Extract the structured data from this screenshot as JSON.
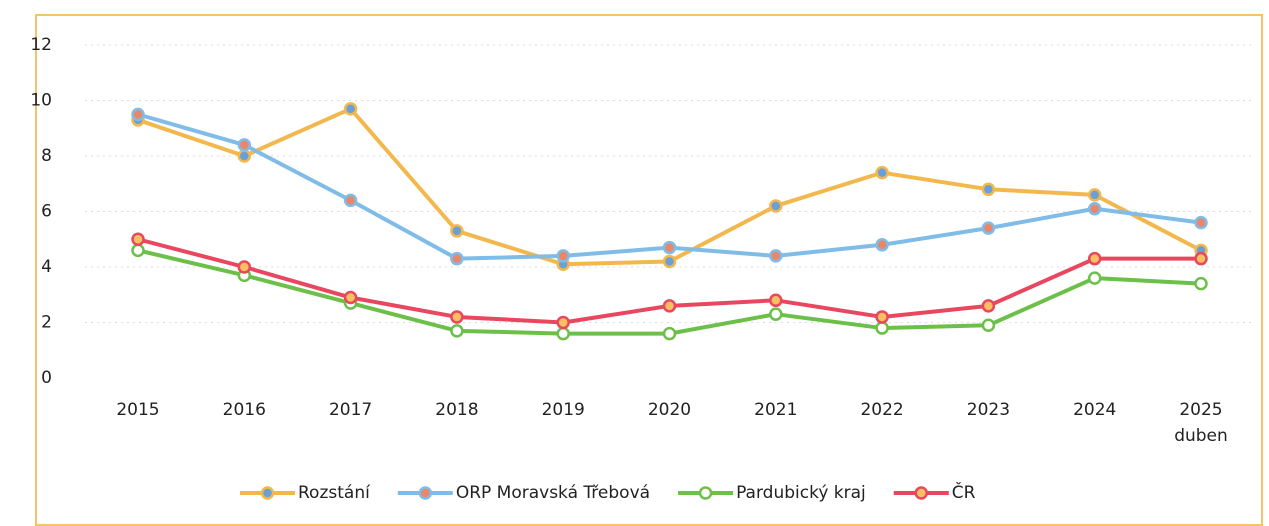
{
  "chart_data": {
    "type": "line",
    "categories": [
      "2015",
      "2016",
      "2017",
      "2018",
      "2019",
      "2020",
      "2021",
      "2022",
      "2023",
      "2024",
      "2025 duben"
    ],
    "series": [
      {
        "name": "Rozstání",
        "color": "#f2b84e",
        "marker_fill": "#6a9fd8",
        "marker_edge": "#f2b84e",
        "values": [
          9.3,
          8.0,
          9.7,
          5.3,
          4.1,
          4.2,
          6.2,
          7.4,
          6.8,
          6.6,
          4.6
        ]
      },
      {
        "name": "ORP Moravská Třebová",
        "color": "#80bce8",
        "marker_fill": "#e8876a",
        "marker_edge": "#80bce8",
        "values": [
          9.5,
          8.4,
          6.4,
          4.3,
          4.4,
          4.7,
          4.4,
          4.8,
          5.4,
          6.1,
          5.6
        ]
      },
      {
        "name": "Pardubický kraj",
        "color": "#6cc04a",
        "marker_fill": "#ffffff",
        "marker_edge": "#6cc04a",
        "values": [
          4.6,
          3.7,
          2.7,
          1.7,
          1.6,
          1.6,
          2.3,
          1.8,
          1.9,
          3.6,
          3.4
        ]
      },
      {
        "name": "ČR",
        "color": "#e8475f",
        "marker_fill": "#f8c060",
        "marker_edge": "#e8475f",
        "values": [
          5.0,
          4.0,
          2.9,
          2.2,
          2.0,
          2.6,
          2.8,
          2.2,
          2.6,
          4.3,
          4.3
        ]
      }
    ],
    "ylim": [
      0,
      12
    ],
    "yticks": [
      0,
      2,
      4,
      6,
      8,
      10,
      12
    ],
    "grid": true,
    "legend": "bottom"
  }
}
